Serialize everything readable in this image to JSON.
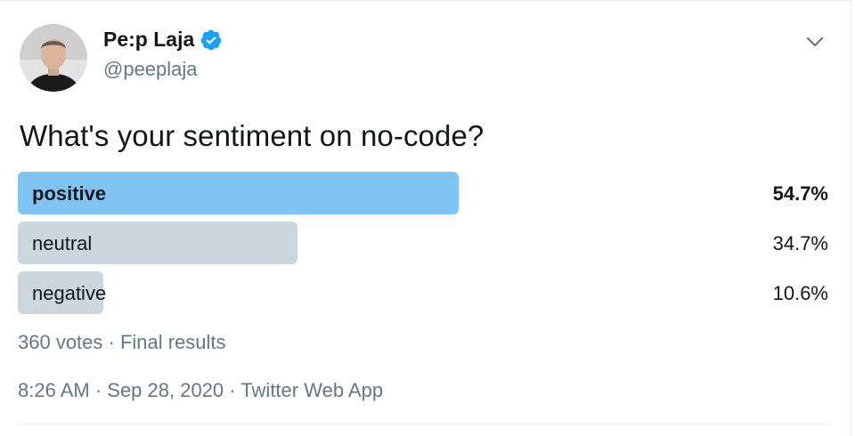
{
  "author": {
    "display_name": "Pe:p Laja",
    "handle": "@peeplaja",
    "verified_icon": "verified-badge-icon"
  },
  "tweet": {
    "text": "What's your sentiment on no-code?"
  },
  "poll": {
    "options": [
      {
        "label": "positive",
        "percent_text": "54.7%",
        "percent": 54.7,
        "winner": true
      },
      {
        "label": "neutral",
        "percent_text": "34.7%",
        "percent": 34.7,
        "winner": false
      },
      {
        "label": "negative",
        "percent_text": "10.6%",
        "percent": 10.6,
        "winner": false
      }
    ],
    "meta": "360 votes · Final results"
  },
  "footer": {
    "timestamp": "8:26 AM · Sep 28, 2020 · Twitter Web App"
  },
  "colors": {
    "winner_bar": "#7fc4f2",
    "other_bar": "#ccd6dd",
    "verified": "#1da1f2",
    "secondary_text": "#657786"
  },
  "icons": {
    "caret": "chevron-down-icon"
  }
}
